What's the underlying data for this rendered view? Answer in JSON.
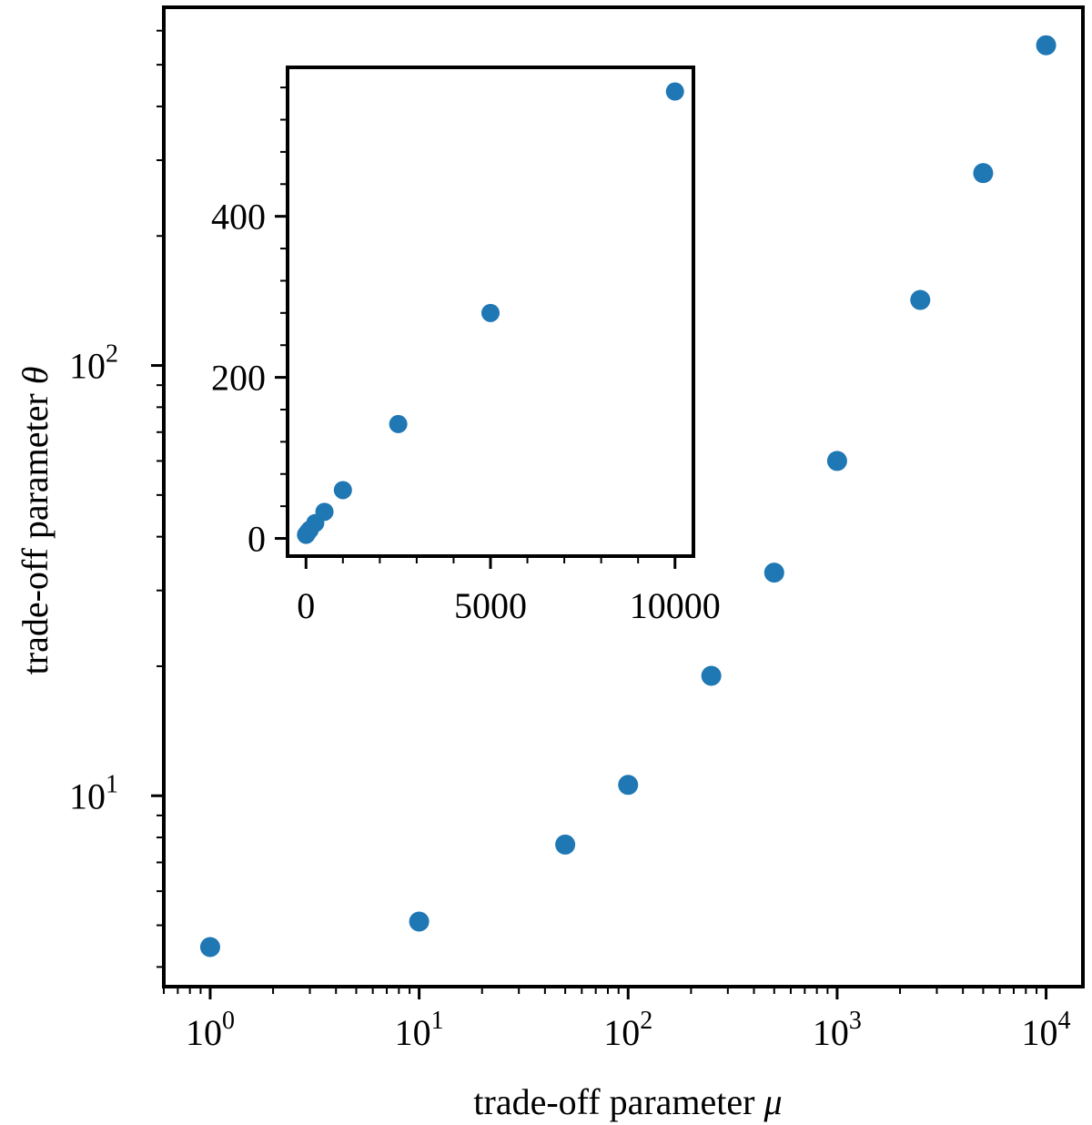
{
  "chart_data": [
    {
      "type": "scatter",
      "name": "main",
      "xscale": "log",
      "yscale": "log",
      "xlabel": "trade-off parameter",
      "xlabel_symbol": "μ",
      "ylabel": "trade-off parameter",
      "ylabel_symbol": "θ",
      "xlim": [
        0.6,
        15000
      ],
      "ylim": [
        3.6,
        680
      ],
      "x_ticks": [
        {
          "value": 1,
          "base": "10",
          "exp": "0"
        },
        {
          "value": 10,
          "base": "10",
          "exp": "1"
        },
        {
          "value": 100,
          "base": "10",
          "exp": "2"
        },
        {
          "value": 1000,
          "base": "10",
          "exp": "3"
        },
        {
          "value": 10000,
          "base": "10",
          "exp": "4"
        }
      ],
      "y_ticks": [
        {
          "value": 10,
          "base": "10",
          "exp": "1"
        },
        {
          "value": 100,
          "base": "10",
          "exp": "2"
        }
      ],
      "grid": false,
      "marker_color": "#1f77b4",
      "points": [
        {
          "x": 1,
          "y": 4.45
        },
        {
          "x": 10,
          "y": 5.1
        },
        {
          "x": 50,
          "y": 7.7
        },
        {
          "x": 100,
          "y": 10.6
        },
        {
          "x": 250,
          "y": 19
        },
        {
          "x": 500,
          "y": 33
        },
        {
          "x": 1000,
          "y": 60
        },
        {
          "x": 2500,
          "y": 142
        },
        {
          "x": 5000,
          "y": 280
        },
        {
          "x": 10000,
          "y": 555
        }
      ]
    },
    {
      "type": "scatter",
      "name": "inset",
      "xscale": "linear",
      "yscale": "linear",
      "xlim": [
        -500,
        10500
      ],
      "ylim": [
        -22,
        585
      ],
      "x_ticks": [
        {
          "value": 0,
          "label": "0"
        },
        {
          "value": 5000,
          "label": "5000"
        },
        {
          "value": 10000,
          "label": "10000"
        }
      ],
      "y_ticks": [
        {
          "value": 0,
          "label": "0"
        },
        {
          "value": 200,
          "label": "200"
        },
        {
          "value": 400,
          "label": "400"
        }
      ],
      "grid": false,
      "marker_color": "#1f77b4",
      "points": [
        {
          "x": 1,
          "y": 4.45
        },
        {
          "x": 10,
          "y": 5.1
        },
        {
          "x": 50,
          "y": 7.7
        },
        {
          "x": 100,
          "y": 10.6
        },
        {
          "x": 250,
          "y": 19
        },
        {
          "x": 500,
          "y": 33
        },
        {
          "x": 1000,
          "y": 60
        },
        {
          "x": 2500,
          "y": 142
        },
        {
          "x": 5000,
          "y": 280
        },
        {
          "x": 10000,
          "y": 555
        }
      ]
    }
  ]
}
